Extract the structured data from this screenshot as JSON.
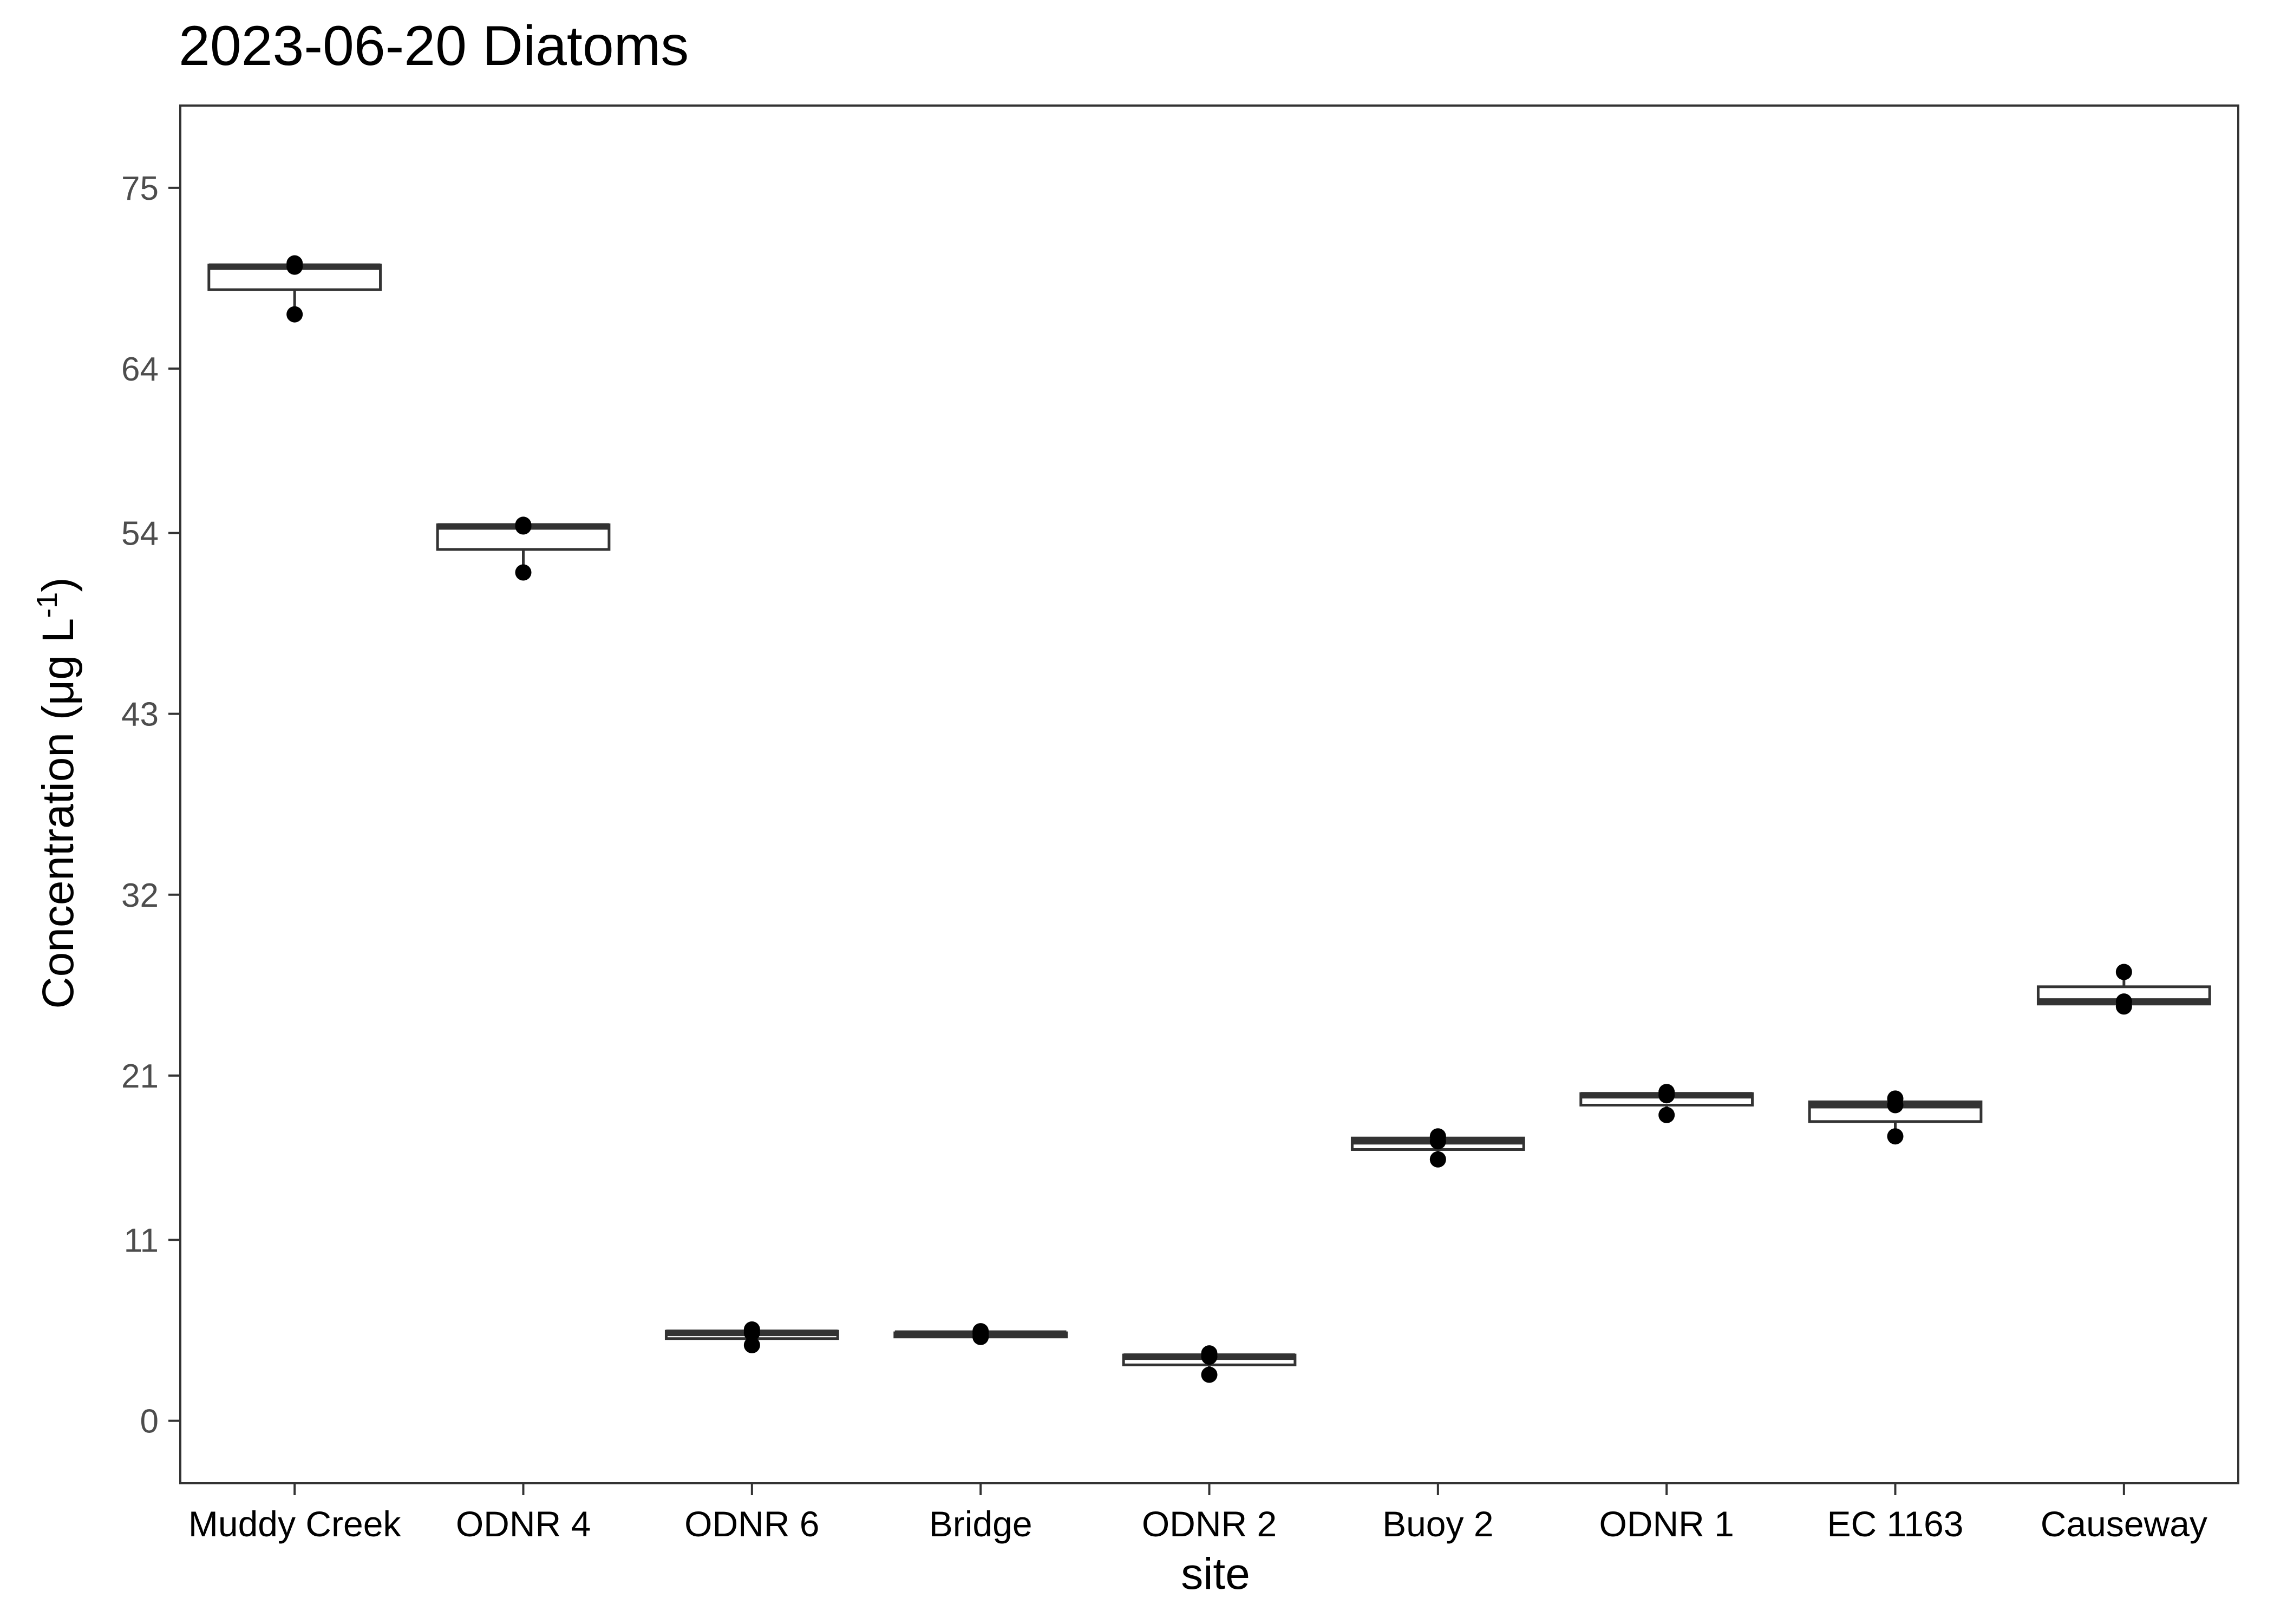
{
  "chart_data": {
    "type": "box",
    "title": "2023-06-20 Diatoms",
    "xlabel": "site",
    "ylabel_main": "Concentration (μg L",
    "ylabel_sup": "-1",
    "ylabel_close": ")",
    "ylim": [
      -3.8,
      80
    ],
    "yticks": [
      0,
      11,
      21,
      32,
      43,
      54,
      64,
      75
    ],
    "grid": false,
    "categories": [
      "Muddy Creek",
      "ODNR 4",
      "ODNR 6",
      "Bridge",
      "ODNR 2",
      "Buoy 2",
      "ODNR 1",
      "EC 1163",
      "Causeway"
    ],
    "boxes": [
      {
        "site": "Muddy Creek",
        "min": 67.3,
        "q1": 68.8,
        "median": 70.2,
        "q3": 70.3,
        "max": 70.4,
        "points": [
          70.4,
          70.2,
          67.3
        ]
      },
      {
        "site": "ODNR 4",
        "min": 51.6,
        "q1": 53.0,
        "median": 54.4,
        "q3": 54.5,
        "max": 54.5,
        "points": [
          54.5,
          54.4,
          51.6
        ]
      },
      {
        "site": "ODNR 6",
        "min": 4.6,
        "q1": 5.0,
        "median": 5.35,
        "q3": 5.45,
        "max": 5.55,
        "points": [
          5.55,
          5.35,
          4.6
        ]
      },
      {
        "site": "Bridge",
        "min": 5.1,
        "q1": 5.1,
        "median": 5.3,
        "q3": 5.35,
        "max": 5.45,
        "points": [
          5.45,
          5.3,
          5.1
        ]
      },
      {
        "site": "ODNR 2",
        "min": 2.8,
        "q1": 3.4,
        "median": 3.9,
        "q3": 4.0,
        "max": 4.1,
        "points": [
          4.1,
          3.9,
          2.8
        ]
      },
      {
        "site": "Buoy 2",
        "min": 15.9,
        "q1": 16.5,
        "median": 17.0,
        "q3": 17.2,
        "max": 17.3,
        "points": [
          17.3,
          17.0,
          15.9
        ]
      },
      {
        "site": "ODNR 1",
        "min": 18.6,
        "q1": 19.2,
        "median": 19.8,
        "q3": 19.9,
        "max": 20.0,
        "points": [
          20.0,
          19.8,
          18.6
        ]
      },
      {
        "site": "EC 1163",
        "min": 17.3,
        "q1": 18.2,
        "median": 19.2,
        "q3": 19.4,
        "max": 19.6,
        "points": [
          19.6,
          19.2,
          17.3
        ]
      },
      {
        "site": "Causeway",
        "min": 25.2,
        "q1": 25.35,
        "median": 25.5,
        "q3": 26.4,
        "max": 27.3,
        "points": [
          27.3,
          25.5,
          25.2
        ]
      }
    ]
  }
}
